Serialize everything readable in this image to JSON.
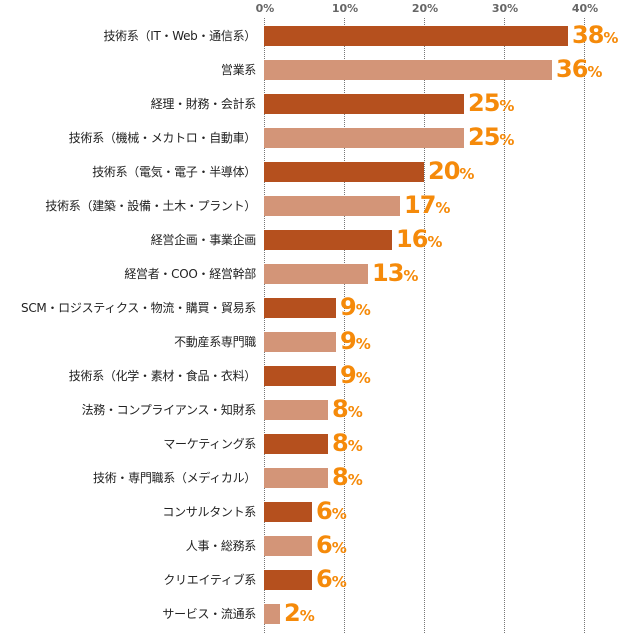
{
  "chart_data": {
    "type": "bar",
    "orientation": "horizontal",
    "xlim": [
      0,
      40
    ],
    "ticks": [
      "0%",
      "10%",
      "20%",
      "30%",
      "40%"
    ],
    "percent_suffix": "%",
    "colors": {
      "dark": "#b5501e",
      "light": "#d39578",
      "label": "#f58a0a"
    },
    "categories": [
      "技術系（IT・Web・通信系）",
      "営業系",
      "経理・財務・会計系",
      "技術系（機械・メカトロ・自動車）",
      "技術系（電気・電子・半導体）",
      "技術系（建築・設備・土木・プラント）",
      "経営企画・事業企画",
      "経営者・COO・経営幹部",
      "SCM・ロジスティクス・物流・購買・貿易系",
      "不動産系専門職",
      "技術系（化学・素材・食品・衣料）",
      "法務・コンプライアンス・知財系",
      "マーケティング系",
      "技術・専門職系（メディカル）",
      "コンサルタント系",
      "人事・総務系",
      "クリエイティブ系",
      "サービス・流通系"
    ],
    "values": [
      38,
      36,
      25,
      25,
      20,
      17,
      16,
      13,
      9,
      9,
      9,
      8,
      8,
      8,
      6,
      6,
      6,
      2
    ]
  }
}
